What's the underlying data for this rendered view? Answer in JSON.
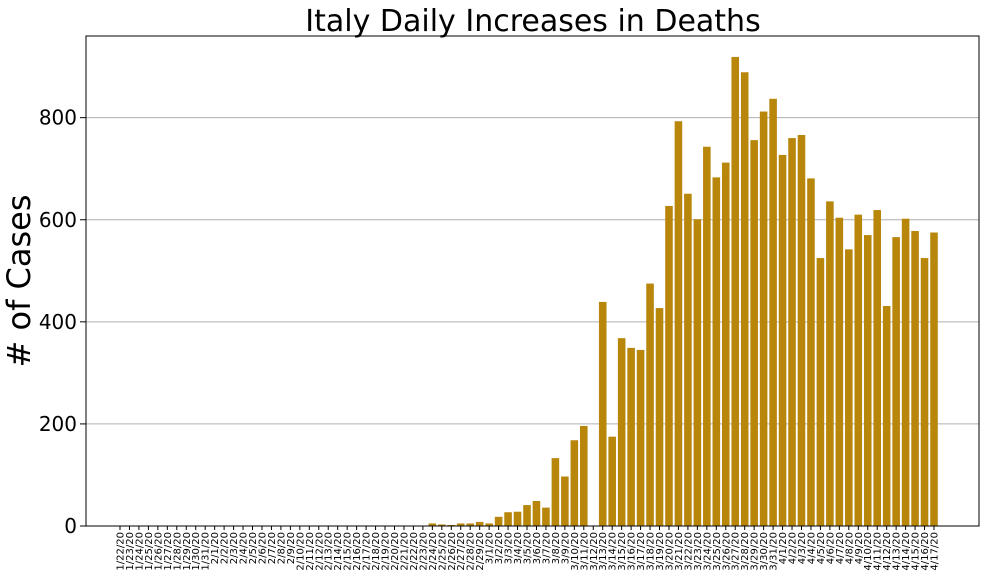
{
  "chart_data": {
    "type": "bar",
    "title": "Italy Daily Increases in Deaths",
    "xlabel": "",
    "ylabel": "# of Cases",
    "ylim": [
      0,
      960
    ],
    "yticks": [
      0,
      200,
      400,
      600,
      800
    ],
    "grid": "y",
    "bar_color": "#B8860B",
    "categories": [
      "1/22/20",
      "1/23/20",
      "1/24/20",
      "1/25/20",
      "1/26/20",
      "1/27/20",
      "1/28/20",
      "1/29/20",
      "1/30/20",
      "1/31/20",
      "2/1/20",
      "2/2/20",
      "2/3/20",
      "2/4/20",
      "2/5/20",
      "2/6/20",
      "2/7/20",
      "2/8/20",
      "2/9/20",
      "2/10/20",
      "2/11/20",
      "2/12/20",
      "2/13/20",
      "2/14/20",
      "2/15/20",
      "2/16/20",
      "2/17/20",
      "2/18/20",
      "2/19/20",
      "2/20/20",
      "2/21/20",
      "2/22/20",
      "2/23/20",
      "2/24/20",
      "2/25/20",
      "2/26/20",
      "2/27/20",
      "2/28/20",
      "2/29/20",
      "3/1/20",
      "3/2/20",
      "3/3/20",
      "3/4/20",
      "3/5/20",
      "3/6/20",
      "3/7/20",
      "3/8/20",
      "3/9/20",
      "3/10/20",
      "3/11/20",
      "3/12/20",
      "3/13/20",
      "3/14/20",
      "3/15/20",
      "3/16/20",
      "3/17/20",
      "3/18/20",
      "3/19/20",
      "3/20/20",
      "3/21/20",
      "3/22/20",
      "3/23/20",
      "3/24/20",
      "3/25/20",
      "3/26/20",
      "3/27/20",
      "3/28/20",
      "3/29/20",
      "3/30/20",
      "3/31/20",
      "4/1/20",
      "4/2/20",
      "4/3/20",
      "4/4/20",
      "4/5/20",
      "4/6/20",
      "4/7/20",
      "4/8/20",
      "4/9/20",
      "4/10/20",
      "4/11/20",
      "4/12/20",
      "4/13/20",
      "4/14/20",
      "4/15/20",
      "4/16/20",
      "4/17/20"
    ],
    "values": [
      0,
      0,
      0,
      0,
      0,
      0,
      0,
      0,
      0,
      0,
      0,
      0,
      0,
      0,
      0,
      0,
      0,
      0,
      0,
      0,
      0,
      0,
      0,
      0,
      0,
      0,
      0,
      0,
      0,
      0,
      0,
      0,
      0,
      5,
      3,
      2,
      5,
      5,
      8,
      5,
      18,
      27,
      28,
      41,
      49,
      36,
      133,
      97,
      168,
      196,
      0,
      439,
      175,
      368,
      349,
      345,
      475,
      427,
      627,
      793,
      651,
      601,
      743,
      683,
      712,
      919,
      889,
      756,
      812,
      837,
      727,
      760,
      766,
      681,
      525,
      636,
      604,
      542,
      610,
      570,
      619,
      431,
      566,
      602,
      578,
      525,
      575
    ]
  }
}
